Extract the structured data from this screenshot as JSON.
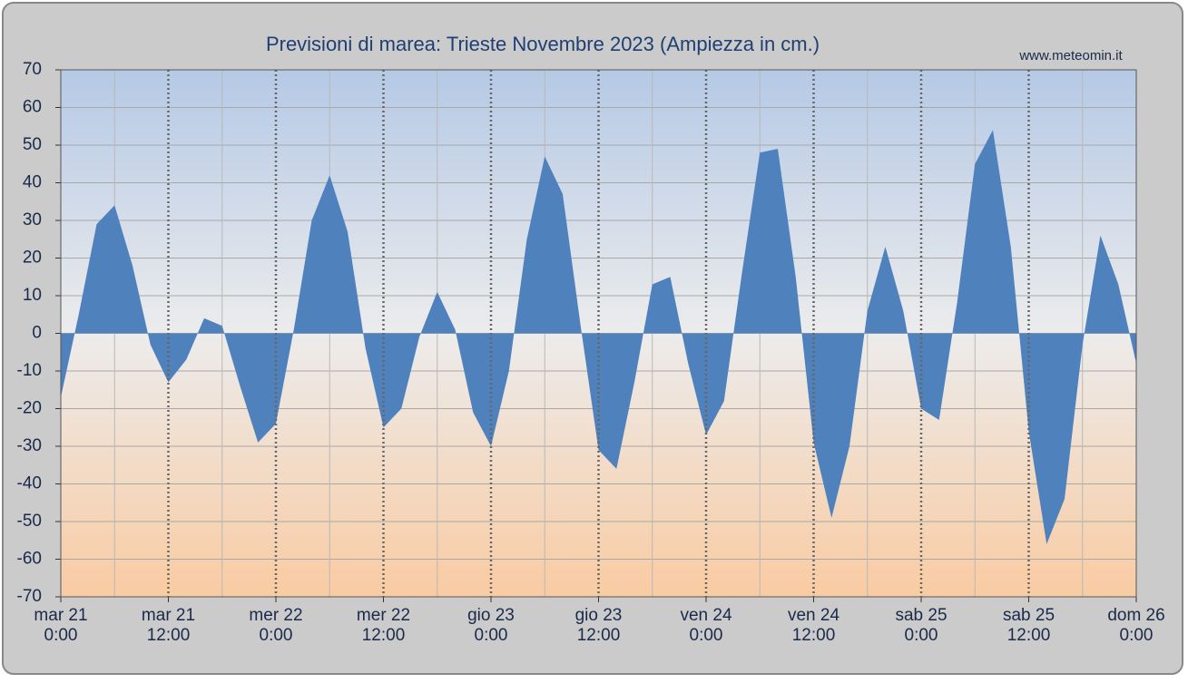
{
  "chart_data": {
    "type": "area",
    "title": "Previsioni di marea: Trieste Novembre 2023 (Ampiezza in cm.)",
    "source": "www.meteomin.it",
    "x": [
      0,
      2,
      4,
      6,
      8,
      10,
      12,
      14,
      16,
      18,
      20,
      22,
      24,
      26,
      28,
      30,
      32,
      34,
      36,
      38,
      40,
      42,
      44,
      46,
      48,
      50,
      52,
      54,
      56,
      58,
      60,
      62,
      64,
      66,
      68,
      70,
      72,
      74,
      76,
      78,
      80,
      82,
      84,
      86,
      88,
      90,
      92,
      94,
      96,
      98,
      100,
      102,
      104,
      106,
      108,
      110,
      112,
      114,
      116,
      118,
      120
    ],
    "series": [
      {
        "color": "#4f81bd",
        "values": [
          -17,
          5,
          29,
          34,
          18,
          -3,
          -13,
          -7,
          4,
          2,
          -14,
          -29,
          -24,
          1,
          30,
          42,
          27,
          -4,
          -25,
          -20,
          -1,
          11,
          1,
          -21,
          -30,
          -10,
          25,
          47,
          37,
          2,
          -31,
          -36,
          -13,
          13,
          15,
          -8,
          -27,
          -18,
          16,
          48,
          49,
          15,
          -29,
          -49,
          -30,
          6,
          23,
          6,
          -20,
          -23,
          8,
          45,
          54,
          23,
          -26,
          -56,
          -44,
          -3,
          26,
          13,
          -8
        ]
      }
    ],
    "xlim": [
      0,
      120
    ],
    "xticks": [
      {
        "value": 0,
        "label": [
          "mar 21",
          "0:00"
        ]
      },
      {
        "value": 12,
        "label": [
          "mar 21",
          "12:00"
        ]
      },
      {
        "value": 24,
        "label": [
          "mer 22",
          "0:00"
        ]
      },
      {
        "value": 36,
        "label": [
          "mer 22",
          "12:00"
        ]
      },
      {
        "value": 48,
        "label": [
          "gio 23",
          "0:00"
        ]
      },
      {
        "value": 60,
        "label": [
          "gio 23",
          "12:00"
        ]
      },
      {
        "value": 72,
        "label": [
          "ven 24",
          "0:00"
        ]
      },
      {
        "value": 84,
        "label": [
          "ven 24",
          "12:00"
        ]
      },
      {
        "value": 96,
        "label": [
          "sab 25",
          "0:00"
        ]
      },
      {
        "value": 108,
        "label": [
          "sab 25",
          "12:00"
        ]
      },
      {
        "value": 120,
        "label": [
          "dom 26",
          "0:00"
        ]
      }
    ],
    "xminorticks": [
      6,
      18,
      30,
      42,
      54,
      66,
      78,
      90,
      102,
      114
    ],
    "ylim": [
      -70,
      70
    ],
    "yticks": [
      -70,
      -60,
      -50,
      -40,
      -30,
      -20,
      -10,
      0,
      10,
      20,
      30,
      40,
      50,
      60,
      70
    ],
    "grid": true
  }
}
